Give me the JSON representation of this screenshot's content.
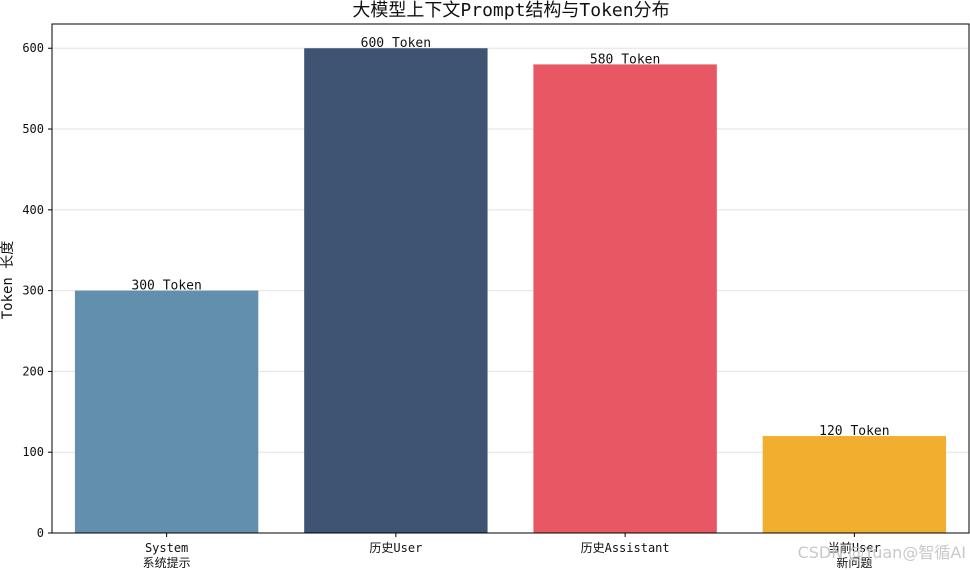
{
  "chart_data": {
    "type": "bar",
    "title": "大模型上下文Prompt结构与Token分布",
    "xlabel": "",
    "ylabel": "Token 长度",
    "ylim": [
      0,
      630
    ],
    "yticks": [
      0,
      100,
      200,
      300,
      400,
      500,
      600
    ],
    "grid": "y",
    "categories": [
      [
        "System",
        "系统提示"
      ],
      [
        "历史User"
      ],
      [
        "历史Assistant"
      ],
      [
        "当前User",
        "新问题"
      ]
    ],
    "values": [
      300,
      600,
      580,
      120
    ],
    "data_labels": [
      "300 Token",
      "600 Token",
      "580 Token",
      "120 Token"
    ],
    "colors": [
      "#618fad",
      "#3e5472",
      "#e85764",
      "#f2ae2f"
    ]
  },
  "watermark": "CSDN @Yuan@智循AI"
}
